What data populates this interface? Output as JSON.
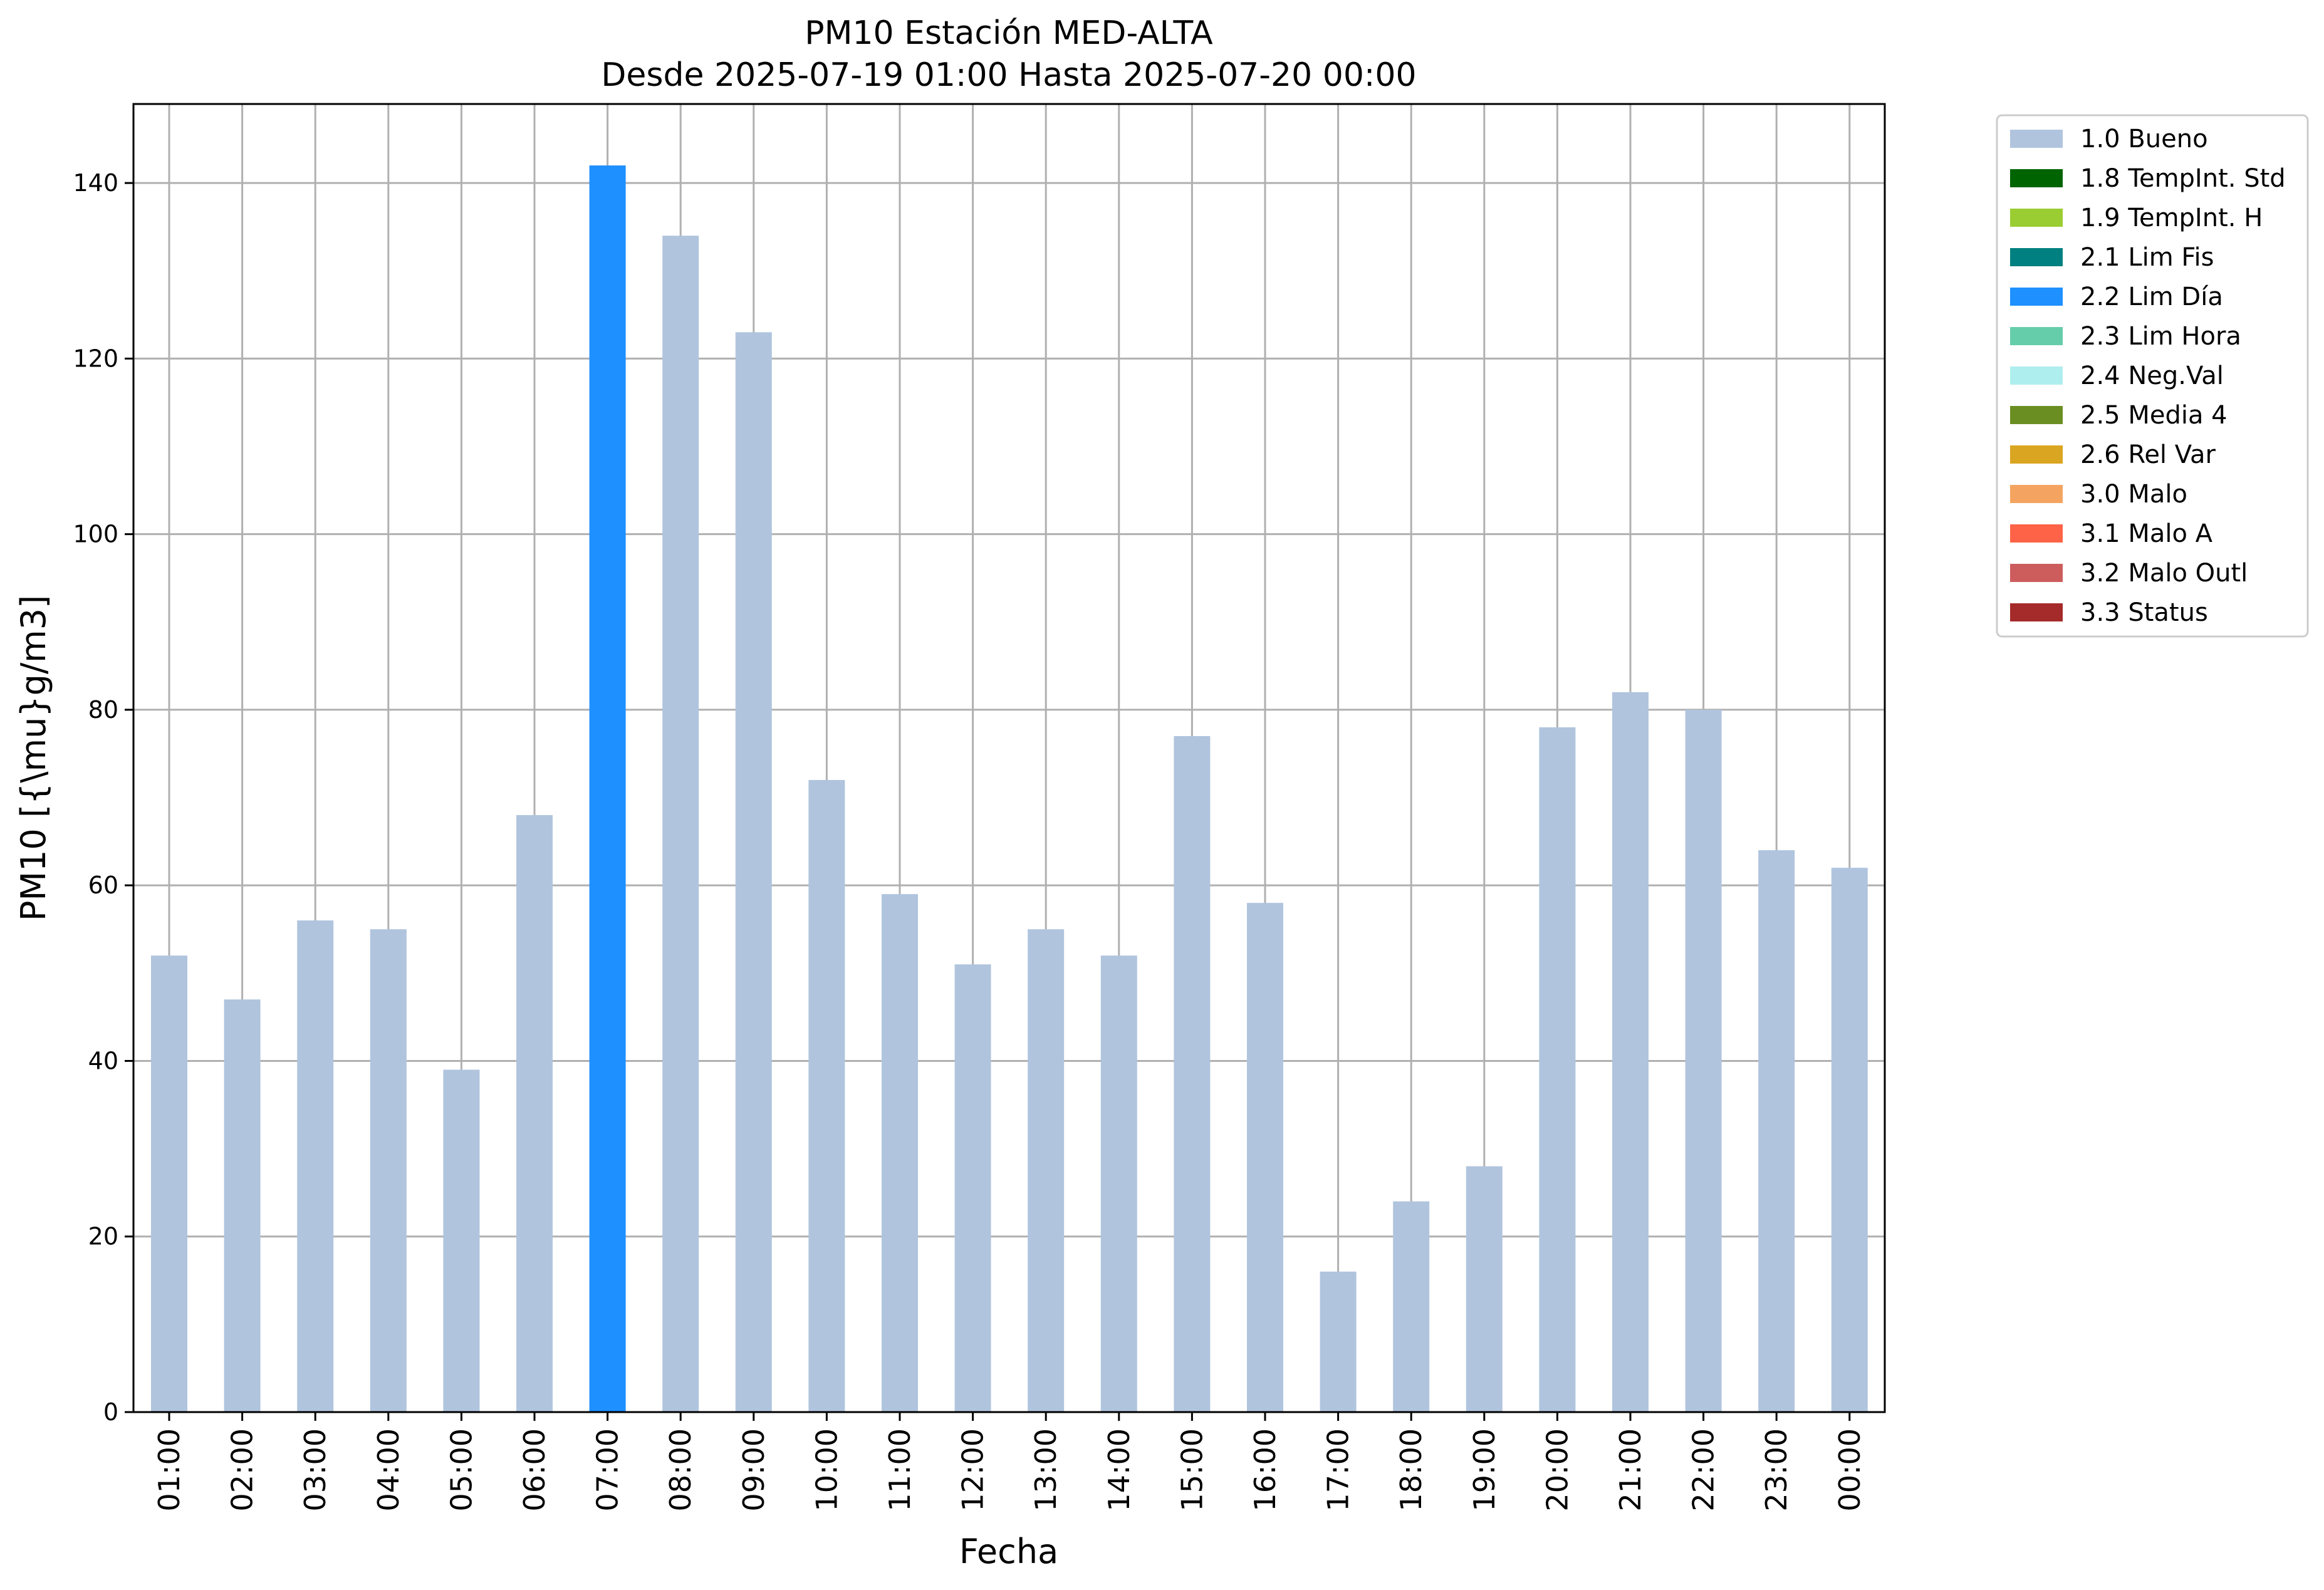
{
  "title_line1": "PM10 Estación MED-ALTA",
  "title_line2": "Desde 2025-07-19 01:00 Hasta 2025-07-20 00:00",
  "chart_data": {
    "type": "bar",
    "xlabel": "Fecha",
    "ylabel": "PM10 [{\\mu}g/m3]",
    "ylim": [
      0,
      149
    ],
    "yticks": [
      0,
      20,
      40,
      60,
      80,
      100,
      120,
      140
    ],
    "grid": true,
    "legend_position": "outside-top-right",
    "categories": [
      "01:00",
      "02:00",
      "03:00",
      "04:00",
      "05:00",
      "06:00",
      "07:00",
      "08:00",
      "09:00",
      "10:00",
      "11:00",
      "12:00",
      "13:00",
      "14:00",
      "15:00",
      "16:00",
      "17:00",
      "18:00",
      "19:00",
      "20:00",
      "21:00",
      "22:00",
      "23:00",
      "00:00"
    ],
    "values": [
      52,
      47,
      56,
      55,
      39,
      68,
      142,
      134,
      123,
      72,
      59,
      51,
      55,
      52,
      77,
      58,
      16,
      24,
      28,
      78,
      82,
      80,
      64,
      62
    ],
    "bar_flags": [
      "1.0 Bueno",
      "1.0 Bueno",
      "1.0 Bueno",
      "1.0 Bueno",
      "1.0 Bueno",
      "1.0 Bueno",
      "2.2 Lim Día",
      "1.0 Bueno",
      "1.0 Bueno",
      "1.0 Bueno",
      "1.0 Bueno",
      "1.0 Bueno",
      "1.0 Bueno",
      "1.0 Bueno",
      "1.0 Bueno",
      "1.0 Bueno",
      "1.0 Bueno",
      "1.0 Bueno",
      "1.0 Bueno",
      "1.0 Bueno",
      "1.0 Bueno",
      "1.0 Bueno",
      "1.0 Bueno",
      "1.0 Bueno"
    ],
    "legend": [
      {
        "label": "1.0 Bueno",
        "color": "#b0c4de"
      },
      {
        "label": "1.8 TempInt. Std",
        "color": "#006400"
      },
      {
        "label": "1.9 TempInt. H",
        "color": "#9acd32"
      },
      {
        "label": "2.1 Lim Fis",
        "color": "#008080"
      },
      {
        "label": "2.2 Lim Día",
        "color": "#1e90ff"
      },
      {
        "label": "2.3 Lim Hora",
        "color": "#66cdaa"
      },
      {
        "label": "2.4 Neg.Val",
        "color": "#afeeee"
      },
      {
        "label": "2.5 Media 4",
        "color": "#6b8e23"
      },
      {
        "label": "2.6 Rel Var",
        "color": "#daa520"
      },
      {
        "label": "3.0 Malo",
        "color": "#f4a460"
      },
      {
        "label": "3.1 Malo A",
        "color": "#ff6347"
      },
      {
        "label": "3.2 Malo Outl",
        "color": "#cd5c5c"
      },
      {
        "label": "3.3 Status",
        "color": "#a52a2a"
      }
    ]
  }
}
